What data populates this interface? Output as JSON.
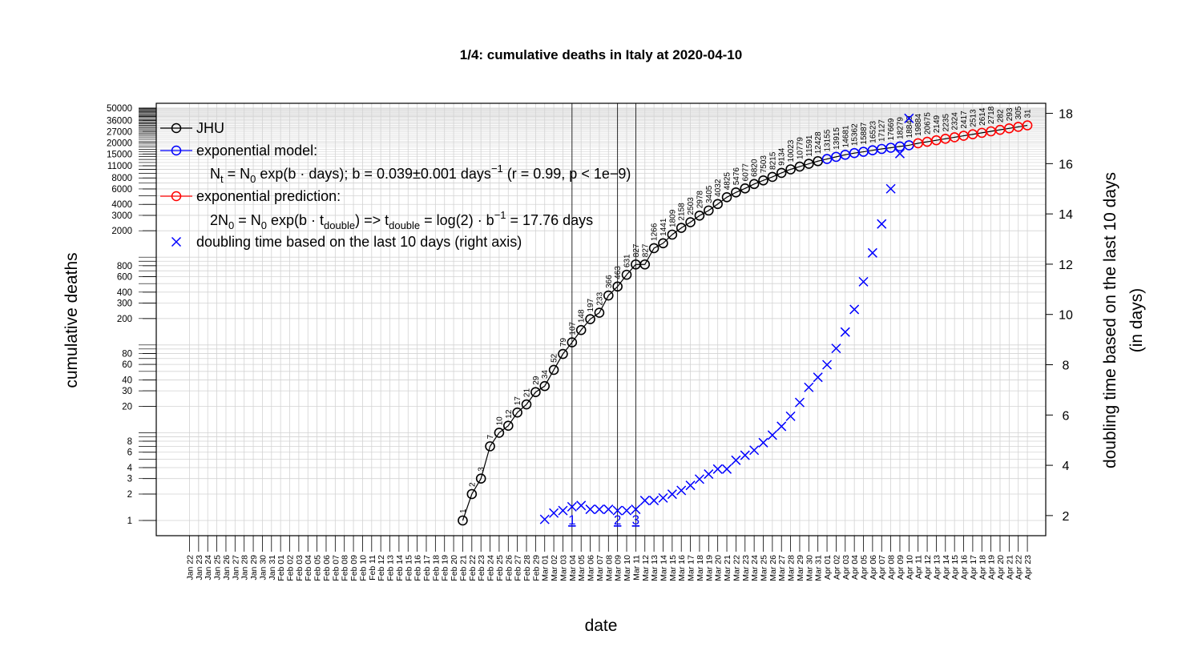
{
  "chart_data": {
    "type": "line",
    "title": "1/4: cumulative deaths in Italy at 2020-04-10",
    "xlabel": "date",
    "ylabel": "cumulative deaths",
    "ylabel_right": [
      "doubling time based on the last 10 days",
      "(in days)"
    ],
    "yscale": "log",
    "x_labels": [
      "Jan 22",
      "Jan 23",
      "Jan 24",
      "Jan 25",
      "Jan 26",
      "Jan 27",
      "Jan 28",
      "Jan 29",
      "Jan 30",
      "Jan 31",
      "Feb 01",
      "Feb 02",
      "Feb 03",
      "Feb 04",
      "Feb 05",
      "Feb 06",
      "Feb 07",
      "Feb 08",
      "Feb 09",
      "Feb 10",
      "Feb 11",
      "Feb 12",
      "Feb 13",
      "Feb 14",
      "Feb 15",
      "Feb 16",
      "Feb 17",
      "Feb 18",
      "Feb 19",
      "Feb 20",
      "Feb 21",
      "Feb 22",
      "Feb 23",
      "Feb 24",
      "Feb 25",
      "Feb 26",
      "Feb 27",
      "Feb 28",
      "Feb 29",
      "Mar 01",
      "Mar 02",
      "Mar 03",
      "Mar 04",
      "Mar 05",
      "Mar 06",
      "Mar 07",
      "Mar 08",
      "Mar 09",
      "Mar 10",
      "Mar 11",
      "Mar 12",
      "Mar 13",
      "Mar 14",
      "Mar 15",
      "Mar 16",
      "Mar 17",
      "Mar 18",
      "Mar 19",
      "Mar 20",
      "Mar 21",
      "Mar 22",
      "Mar 23",
      "Mar 24",
      "Mar 25",
      "Mar 26",
      "Mar 27",
      "Mar 28",
      "Mar 29",
      "Mar 30",
      "Mar 31",
      "Apr 01",
      "Apr 02",
      "Apr 03",
      "Apr 04",
      "Apr 05",
      "Apr 06",
      "Apr 07",
      "Apr 08",
      "Apr 09",
      "Apr 10",
      "Apr 11",
      "Apr 12",
      "Apr 13",
      "Apr 14",
      "Apr 15",
      "Apr 16",
      "Apr 17",
      "Apr 18",
      "Apr 19",
      "Apr 20",
      "Apr 21",
      "Apr 22",
      "Apr 23"
    ],
    "y_ticks": [
      1,
      2,
      3,
      4,
      6,
      8,
      20,
      30,
      40,
      60,
      80,
      200,
      300,
      400,
      600,
      800,
      2000,
      3000,
      4000,
      6000,
      8000,
      11000,
      15000,
      20000,
      27000,
      36000,
      50000
    ],
    "y_right_ticks": [
      2,
      4,
      6,
      8,
      10,
      12,
      14,
      16,
      18
    ],
    "y_right_range": [
      1.2,
      18.4
    ],
    "series": [
      {
        "name": "JHU",
        "color": "#000000",
        "x": [
          "Feb 21",
          "Feb 22",
          "Feb 23",
          "Feb 24",
          "Feb 25",
          "Feb 26",
          "Feb 27",
          "Feb 28",
          "Feb 29",
          "Mar 01",
          "Mar 02",
          "Mar 03",
          "Mar 04",
          "Mar 05",
          "Mar 06",
          "Mar 07",
          "Mar 08",
          "Mar 09",
          "Mar 10",
          "Mar 11",
          "Mar 12",
          "Mar 13",
          "Mar 14",
          "Mar 15",
          "Mar 16",
          "Mar 17",
          "Mar 18",
          "Mar 19",
          "Mar 20",
          "Mar 21",
          "Mar 22",
          "Mar 23",
          "Mar 24",
          "Mar 25",
          "Mar 26",
          "Mar 27",
          "Mar 28",
          "Mar 29",
          "Mar 30",
          "Mar 31"
        ],
        "values": [
          1,
          2,
          3,
          7,
          10,
          12,
          17,
          21,
          29,
          34,
          52,
          79,
          107,
          148,
          197,
          233,
          366,
          463,
          631,
          827,
          827,
          1266,
          1441,
          1809,
          2158,
          2503,
          2978,
          3405,
          4032,
          4825,
          5476,
          6077,
          6820,
          7503,
          8215,
          9134,
          10023,
          10779,
          11591,
          12428
        ]
      },
      {
        "name": "exponential model:",
        "color": "#0000ff",
        "x": [
          "Apr 01",
          "Apr 02",
          "Apr 03",
          "Apr 04",
          "Apr 05",
          "Apr 06",
          "Apr 07",
          "Apr 08",
          "Apr 09",
          "Apr 10"
        ],
        "values": [
          13155,
          13915,
          14681,
          15362,
          15887,
          16523,
          17127,
          17669,
          18279,
          18849
        ]
      },
      {
        "name": "exponential prediction:",
        "color": "#ff0000",
        "x": [
          "Apr 11",
          "Apr 12",
          "Apr 13",
          "Apr 14",
          "Apr 15",
          "Apr 16",
          "Apr 17",
          "Apr 18",
          "Apr 19",
          "Apr 20",
          "Apr 21",
          "Apr 22",
          "Apr 23"
        ],
        "values": [
          19884,
          20675,
          21498,
          22355,
          23247,
          24174,
          25139,
          26141,
          27184,
          28268,
          29395,
          30568,
          31787
        ],
        "labels_visible": [
          "19884",
          "20675",
          "2149",
          "2235",
          "2324",
          "2417",
          "2513",
          "2614",
          "2718",
          "282",
          "293",
          "305",
          "31"
        ]
      },
      {
        "name": "doubling time based on the last  10  days (right axis)",
        "color": "#0000ff",
        "axis": "right",
        "marker": "x",
        "x": [
          "Mar 01",
          "Mar 02",
          "Mar 03",
          "Mar 04",
          "Mar 05",
          "Mar 06",
          "Mar 07",
          "Mar 08",
          "Mar 09",
          "Mar 10",
          "Mar 11",
          "Mar 12",
          "Mar 13",
          "Mar 14",
          "Mar 15",
          "Mar 16",
          "Mar 17",
          "Mar 18",
          "Mar 19",
          "Mar 20",
          "Mar 21",
          "Mar 22",
          "Mar 23",
          "Mar 24",
          "Mar 25",
          "Mar 26",
          "Mar 27",
          "Mar 28",
          "Mar 29",
          "Mar 30",
          "Mar 31",
          "Apr 01",
          "Apr 02",
          "Apr 03",
          "Apr 04",
          "Apr 05",
          "Apr 06",
          "Apr 07",
          "Apr 08",
          "Apr 09",
          "Apr 10"
        ],
        "values": [
          1.85,
          2.1,
          2.2,
          2.35,
          2.4,
          2.25,
          2.25,
          2.25,
          2.2,
          2.2,
          2.25,
          2.6,
          2.6,
          2.7,
          2.85,
          3.0,
          3.2,
          3.45,
          3.65,
          3.85,
          3.85,
          4.2,
          4.4,
          4.6,
          4.9,
          5.2,
          5.55,
          5.95,
          6.5,
          7.1,
          7.5,
          8.0,
          8.65,
          9.3,
          10.2,
          11.3,
          12.45,
          13.6,
          15.0,
          16.4,
          17.8
        ]
      }
    ],
    "vlines": [
      {
        "x": "Mar 04",
        "label": "1"
      },
      {
        "x": "Mar 09",
        "label": "2"
      },
      {
        "x": "Mar 11",
        "label": "3"
      }
    ],
    "legend": {
      "position": "top-left",
      "entries": [
        {
          "text": "JHU",
          "color": "#000000",
          "marker": "o"
        },
        {
          "text": "exponential model:",
          "color": "#0000ff",
          "marker": "o"
        },
        {
          "text": "N_t = N_0 exp(b · days); b = 0.039 ± 0.001 days^-1 (r = 0.99, p < 1e-9)",
          "color": "",
          "marker": ""
        },
        {
          "text": "exponential prediction:",
          "color": "#ff0000",
          "marker": "o"
        },
        {
          "text": "2N_0 = N_0 exp(b · t_double) => t_double = log(2) · b^-1 = 17.76 days",
          "color": "",
          "marker": ""
        },
        {
          "text": "doubling time based on the last  10  days (right axis)",
          "color": "#0000ff",
          "marker": "x"
        }
      ]
    },
    "grid": true
  }
}
